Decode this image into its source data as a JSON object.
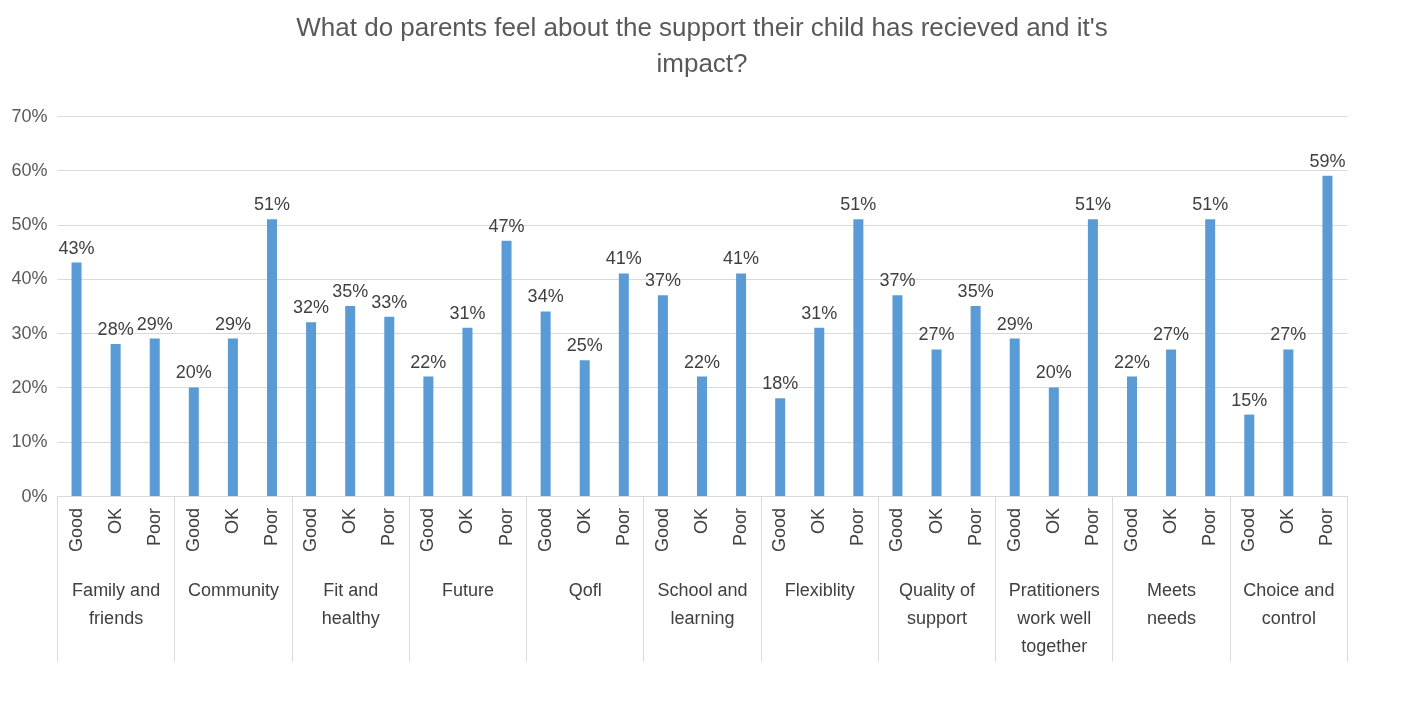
{
  "chart_data": {
    "type": "bar",
    "title": "What do parents feel about the support their child has recieved and it's impact?",
    "categories": [
      "Family and friends",
      "Community",
      "Fit and healthy",
      "Future",
      "Qofl",
      "School and learning",
      "Flexiblity",
      "Quality of support",
      "Pratitioners work well together",
      "Meets needs",
      "Choice and control"
    ],
    "series": [
      {
        "name": "Good",
        "color": "#5b9bd5",
        "values": [
          43,
          20,
          32,
          22,
          34,
          37,
          18,
          37,
          29,
          22,
          15
        ],
        "value_labels": [
          "43%",
          "20%",
          "32%",
          "22%",
          "34%",
          "37%",
          "18%",
          "37%",
          "29%",
          "22%",
          "15%"
        ]
      },
      {
        "name": "OK",
        "color": "#5b9bd5",
        "values": [
          28,
          29,
          35,
          31,
          25,
          22,
          31,
          27,
          20,
          27,
          27
        ],
        "value_labels": [
          "28%",
          "29%",
          "35%",
          "31%",
          "25%",
          "22%",
          "31%",
          "27%",
          "20%",
          "27%",
          "27%"
        ]
      },
      {
        "name": "Poor",
        "color": "#5b9bd5",
        "values": [
          29,
          51,
          33,
          47,
          41,
          41,
          51,
          35,
          51,
          51,
          59
        ],
        "value_labels": [
          "29%",
          "51%",
          "33%",
          "47%",
          "41%",
          "41%",
          "51%",
          "35%",
          "51%",
          "51%",
          "59%"
        ]
      }
    ],
    "ylim": [
      0,
      70
    ],
    "yticks": [
      {
        "value": 0,
        "label": "0%"
      },
      {
        "value": 10,
        "label": "10%"
      },
      {
        "value": 20,
        "label": "20%"
      },
      {
        "value": 30,
        "label": "30%"
      },
      {
        "value": 40,
        "label": "40%"
      },
      {
        "value": 50,
        "label": "50%"
      },
      {
        "value": 60,
        "label": "60%"
      },
      {
        "value": 70,
        "label": "70%"
      }
    ],
    "grid": "y",
    "legend": false
  }
}
